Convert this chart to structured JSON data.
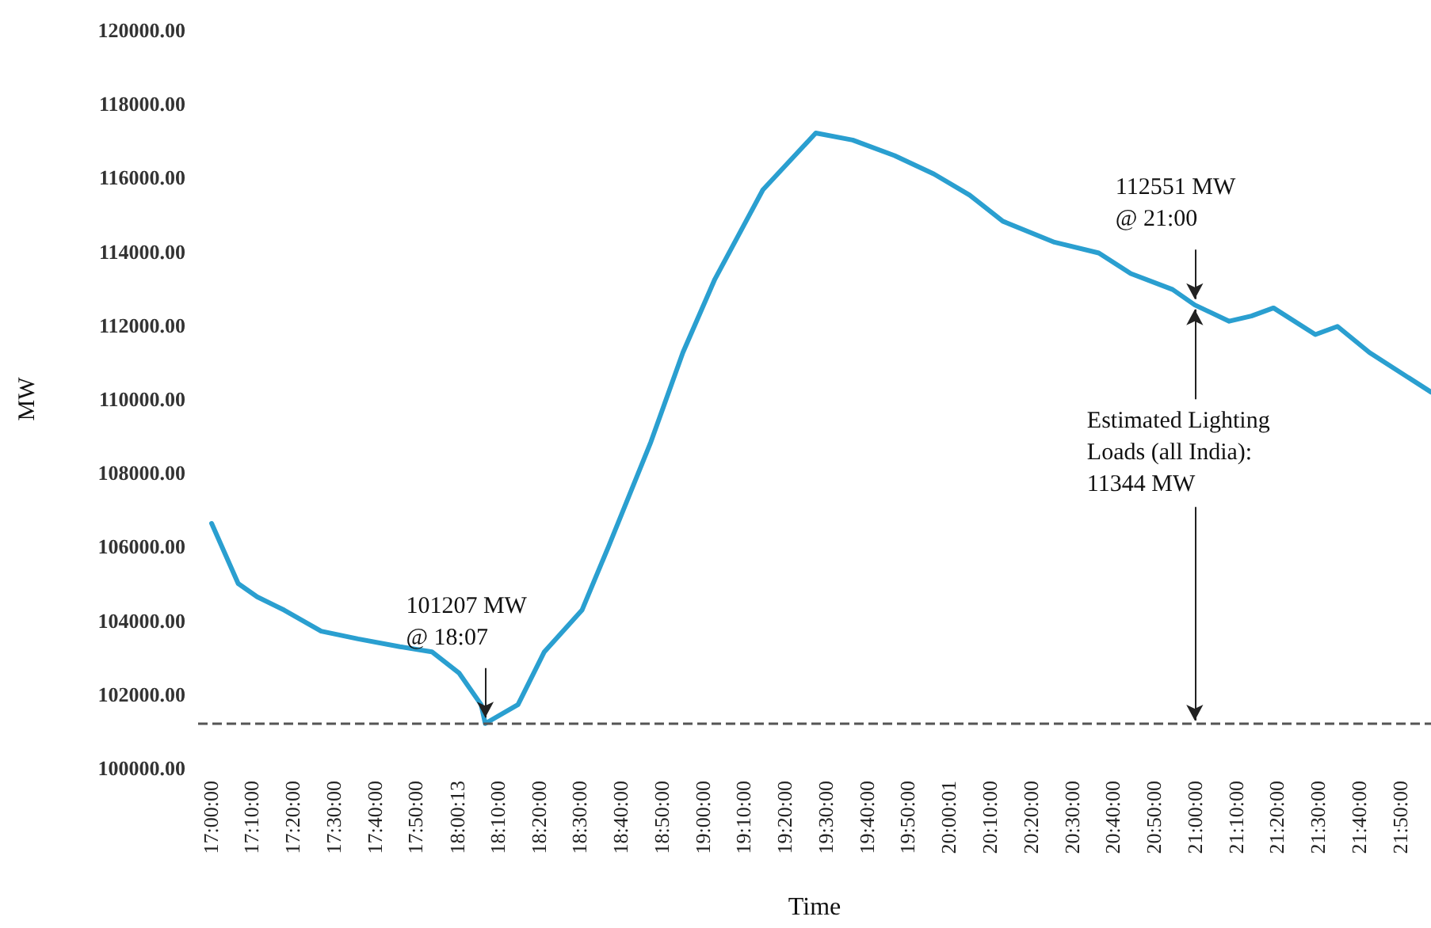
{
  "chart_data": {
    "type": "line",
    "xlabel": "Time",
    "ylabel": "MW",
    "x": [
      17.005,
      17.113,
      17.19,
      17.3,
      17.45,
      17.6,
      17.77,
      17.9,
      18.01,
      18.1,
      18.117,
      18.25,
      18.357,
      18.51,
      18.617,
      18.79,
      18.92,
      19.05,
      19.245,
      19.46,
      19.61,
      19.78,
      19.94,
      20.085,
      20.22,
      20.43,
      20.61,
      20.74,
      20.91,
      21.0,
      21.14,
      21.23,
      21.32,
      21.49,
      21.58,
      21.71,
      21.96
    ],
    "series": [
      {
        "color": "#2a9fd0",
        "values": [
          106630,
          105000,
          104640,
          104280,
          103710,
          103500,
          103290,
          103150,
          102580,
          101720,
          101207,
          101720,
          103150,
          104280,
          105990,
          108840,
          111260,
          113250,
          115670,
          117210,
          117020,
          116600,
          116100,
          115530,
          114820,
          114250,
          113960,
          113400,
          112970,
          112551,
          112110,
          112250,
          112470,
          111750,
          111970,
          111260,
          110190
        ]
      }
    ],
    "xlim": [
      16.95,
      21.96
    ],
    "ylim": [
      100000,
      120000
    ],
    "xticks": [
      {
        "value": 17,
        "label": "17:00:00"
      },
      {
        "value": 17.1667,
        "label": "17:10:00"
      },
      {
        "value": 17.3333,
        "label": "17:20:00"
      },
      {
        "value": 17.5,
        "label": "17:30:00"
      },
      {
        "value": 17.6667,
        "label": "17:40:00"
      },
      {
        "value": 17.8333,
        "label": "17:50:00"
      },
      {
        "value": 18.0036,
        "label": "18:00:13"
      },
      {
        "value": 18.1667,
        "label": "18:10:00"
      },
      {
        "value": 18.3333,
        "label": "18:20:00"
      },
      {
        "value": 18.5,
        "label": "18:30:00"
      },
      {
        "value": 18.6667,
        "label": "18:40:00"
      },
      {
        "value": 18.8333,
        "label": "18:50:00"
      },
      {
        "value": 19,
        "label": "19:00:00"
      },
      {
        "value": 19.1667,
        "label": "19:10:00"
      },
      {
        "value": 19.3333,
        "label": "19:20:00"
      },
      {
        "value": 19.5,
        "label": "19:30:00"
      },
      {
        "value": 19.6667,
        "label": "19:40:00"
      },
      {
        "value": 19.8333,
        "label": "19:50:00"
      },
      {
        "value": 20.0003,
        "label": "20:00:01"
      },
      {
        "value": 20.1667,
        "label": "20:10:00"
      },
      {
        "value": 20.3333,
        "label": "20:20:00"
      },
      {
        "value": 20.5,
        "label": "20:30:00"
      },
      {
        "value": 20.6667,
        "label": "20:40:00"
      },
      {
        "value": 20.8333,
        "label": "20:50:00"
      },
      {
        "value": 21,
        "label": "21:00:00"
      },
      {
        "value": 21.1667,
        "label": "21:10:00"
      },
      {
        "value": 21.3333,
        "label": "21:20:00"
      },
      {
        "value": 21.5,
        "label": "21:30:00"
      },
      {
        "value": 21.6667,
        "label": "21:40:00"
      },
      {
        "value": 21.8333,
        "label": "21:50:00"
      }
    ],
    "yticks": [
      {
        "value": 100000,
        "label": "100000.00"
      },
      {
        "value": 102000,
        "label": "102000.00"
      },
      {
        "value": 104000,
        "label": "104000.00"
      },
      {
        "value": 106000,
        "label": "106000.00"
      },
      {
        "value": 108000,
        "label": "108000.00"
      },
      {
        "value": 110000,
        "label": "110000.00"
      },
      {
        "value": 112000,
        "label": "112000.00"
      },
      {
        "value": 114000,
        "label": "114000.00"
      },
      {
        "value": 116000,
        "label": "116000.00"
      },
      {
        "value": 118000,
        "label": "118000.00"
      },
      {
        "value": 120000,
        "label": "120000.00"
      }
    ],
    "annotations": [
      {
        "text": "101207 MW\n@ 18:07",
        "x": 18.117,
        "y": 101207
      },
      {
        "text": "112551 MW\n@ 21:00",
        "x": 21.0,
        "y": 112551
      },
      "Estimated Lighting\nLoads (all India):\n11344 MW"
    ],
    "ref_lines": [
      {
        "axis": "y",
        "value": 101207,
        "color": "#555555",
        "line_style": "dashed"
      }
    ],
    "grid": false,
    "marker": "none",
    "line_style": "solid"
  }
}
